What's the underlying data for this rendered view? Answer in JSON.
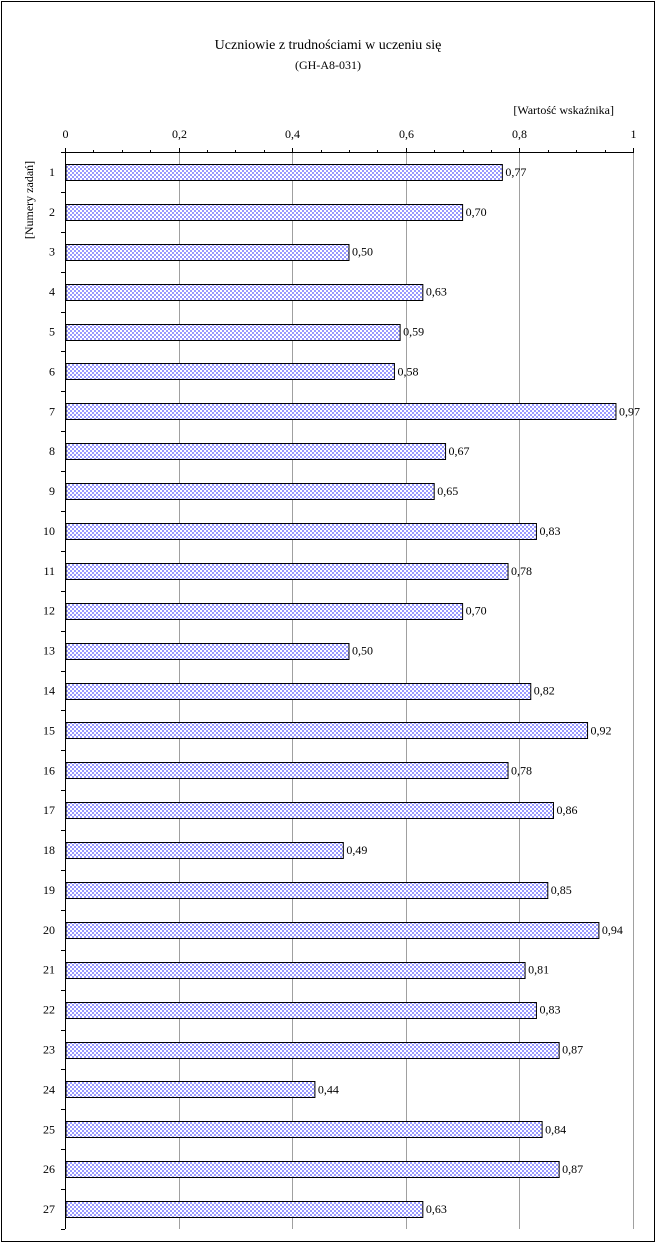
{
  "chart_data": {
    "type": "bar",
    "orientation": "horizontal",
    "title": "Uczniowie z trudnościami w uczeniu się",
    "subtitle": "(GH-A8-031)",
    "xlabel": "[Wartość wskaźnika]",
    "ylabel": "[Numery zadań]",
    "xlim": [
      0,
      1
    ],
    "x_ticks": [
      0,
      0.2,
      0.4,
      0.6,
      0.8,
      1
    ],
    "x_tick_labels": [
      "0",
      "0,2",
      "0,4",
      "0,6",
      "0,8",
      "1"
    ],
    "x_axis_position": "top",
    "grid": true,
    "legend": "none",
    "bar_color": "#9999ff",
    "categories": [
      "1",
      "2",
      "3",
      "4",
      "5",
      "6",
      "7",
      "8",
      "9",
      "10",
      "11",
      "12",
      "13",
      "14",
      "15",
      "16",
      "17",
      "18",
      "19",
      "20",
      "21",
      "22",
      "23",
      "24",
      "25",
      "26",
      "27"
    ],
    "values": [
      0.77,
      0.7,
      0.5,
      0.63,
      0.59,
      0.58,
      0.97,
      0.67,
      0.65,
      0.83,
      0.78,
      0.7,
      0.5,
      0.82,
      0.92,
      0.78,
      0.86,
      0.49,
      0.85,
      0.94,
      0.81,
      0.83,
      0.87,
      0.44,
      0.84,
      0.87,
      0.63
    ],
    "data_labels": [
      "0,77",
      "0,70",
      "0,50",
      "0,63",
      "0,59",
      "0,58",
      "0,97",
      "0,67",
      "0,65",
      "0,83",
      "0,78",
      "0,70",
      "0,50",
      "0,82",
      "0,92",
      "0,78",
      "0,86",
      "0,49",
      "0,85",
      "0,94",
      "0,81",
      "0,83",
      "0,87",
      "0,44",
      "0,84",
      "0,87",
      "0,63"
    ]
  }
}
